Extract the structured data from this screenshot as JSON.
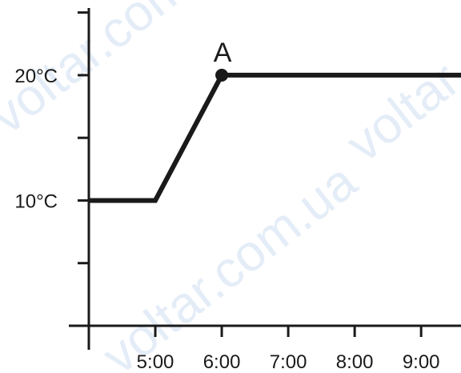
{
  "watermarks": [
    "voltar.com.ua",
    "voltar",
    "voltar.com.ua"
  ],
  "chart_data": {
    "type": "line",
    "title": "",
    "xlabel": "",
    "ylabel": "",
    "x_unit": "hours",
    "y_unit": "°C",
    "xlim": [
      4,
      9.6
    ],
    "ylim": [
      0,
      26
    ],
    "x_ticks": [
      {
        "value": 4,
        "label": ""
      },
      {
        "value": 5,
        "label": "5:00"
      },
      {
        "value": 6,
        "label": "6:00"
      },
      {
        "value": 7,
        "label": "7:00"
      },
      {
        "value": 8,
        "label": "8:00"
      },
      {
        "value": 9,
        "label": "9:00"
      }
    ],
    "y_ticks": [
      {
        "value": 5,
        "label": ""
      },
      {
        "value": 10,
        "label": "10°C"
      },
      {
        "value": 15,
        "label": ""
      },
      {
        "value": 20,
        "label": "20°C"
      },
      {
        "value": 25,
        "label": ""
      }
    ],
    "series": [
      {
        "color": "#1a1a1a",
        "points": [
          {
            "x": 4,
            "y": 10
          },
          {
            "x": 5,
            "y": 10
          },
          {
            "x": 6,
            "y": 20
          },
          {
            "x": 9.6,
            "y": 20
          }
        ]
      }
    ],
    "marked_points": [
      {
        "label": "A",
        "x": 6,
        "y": 20
      }
    ],
    "grid": false,
    "legend": "none"
  }
}
